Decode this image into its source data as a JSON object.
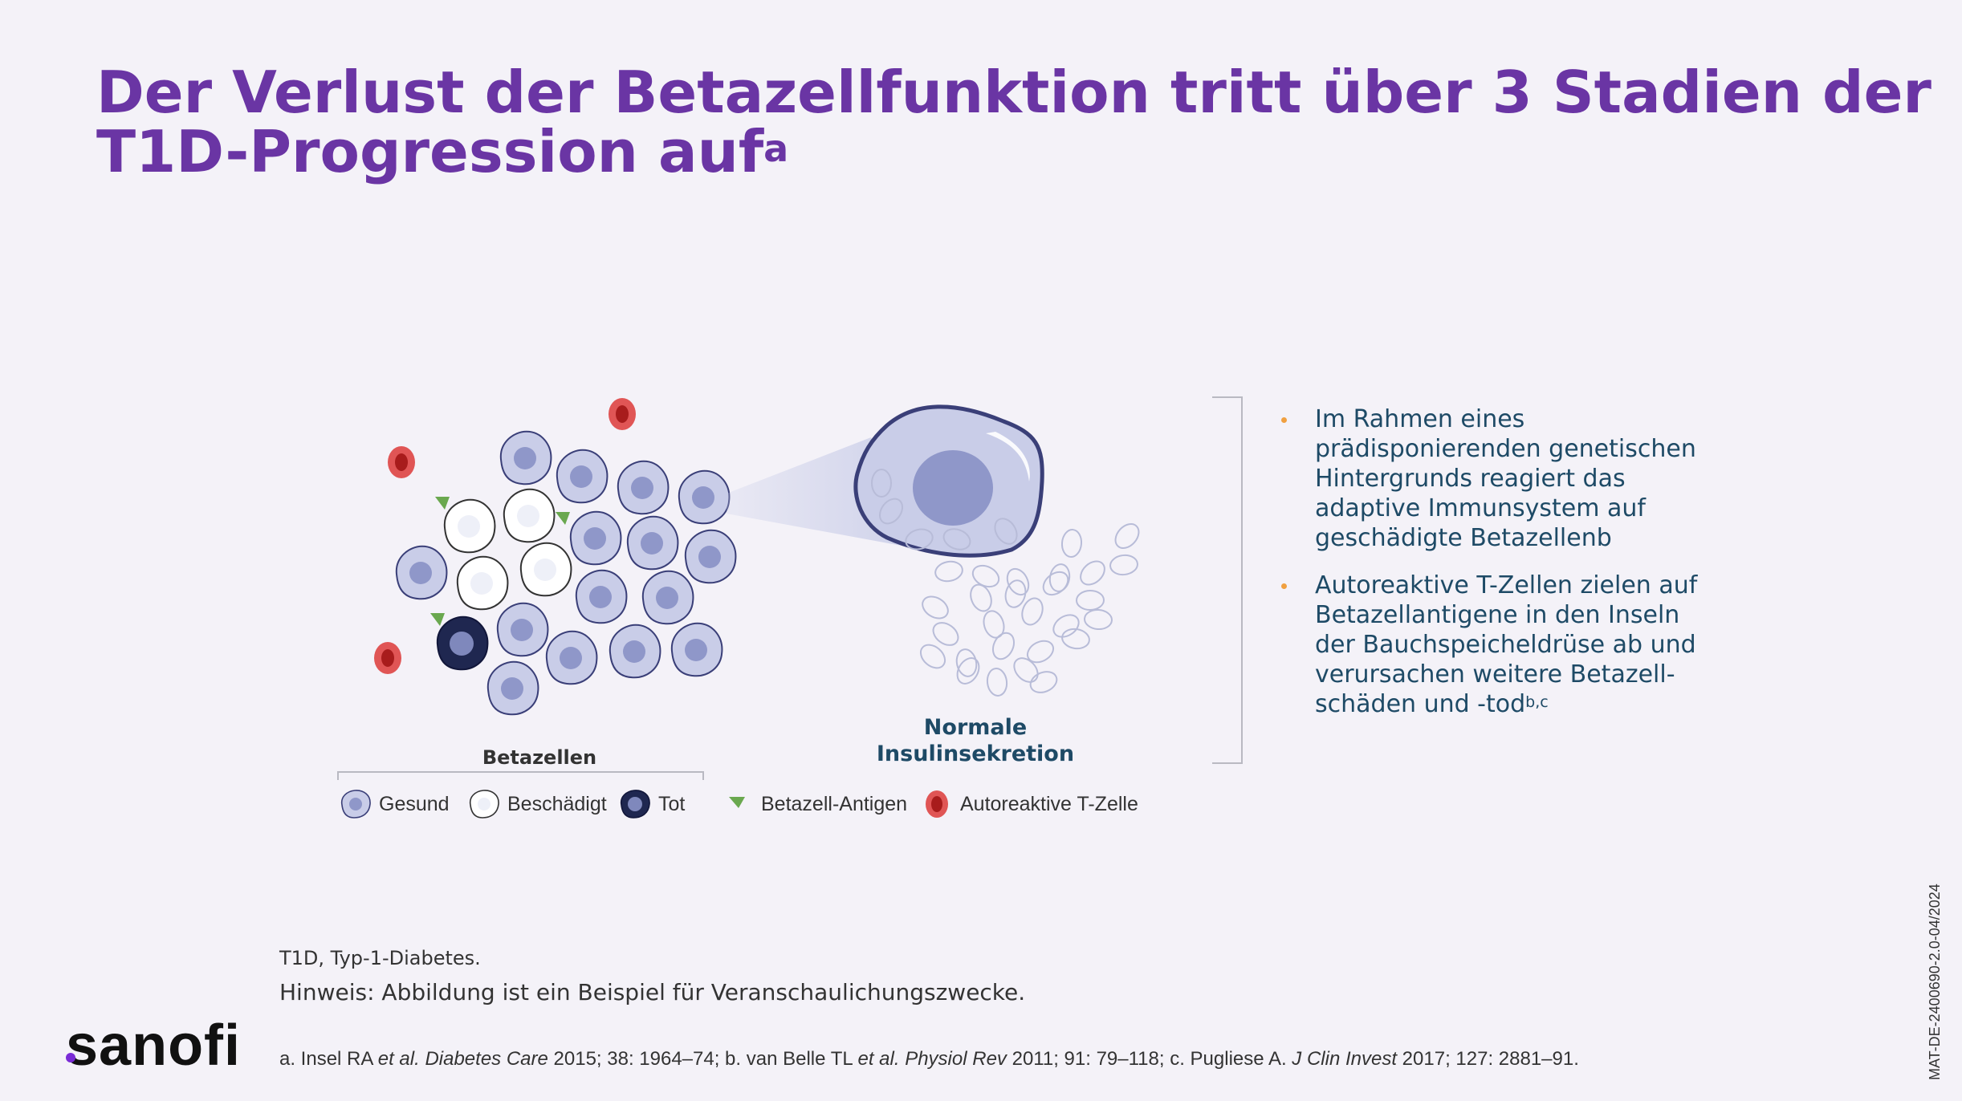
{
  "title": {
    "line1": "Der Verlust der Betazellfunktion tritt über 3 Stadien der",
    "line2": "T1D-Progression auf",
    "superscript": "a"
  },
  "illustration": {
    "cell_groups_label": "Betazellen",
    "normal_secretion_label": [
      "Normale",
      "Insulinsekretion"
    ],
    "colors": {
      "healthy_fill": "#c9cde8",
      "healthy_nucleus": "#8f97c9",
      "cell_outline": "#3a3f78",
      "dead_fill": "#1f2750",
      "antigen": "#6aa84f",
      "tcell_outer": "#e05555",
      "tcell_inner": "#a81c1c"
    }
  },
  "legend": [
    {
      "icon": "healthy-cell-icon",
      "label": "Gesund"
    },
    {
      "icon": "damaged-cell-icon",
      "label": "Beschädigt"
    },
    {
      "icon": "dead-cell-icon",
      "label": "Tot"
    },
    {
      "icon": "antigen-triangle-icon",
      "label": "Betazell-Antigen"
    },
    {
      "icon": "t-cell-icon",
      "label": "Autoreaktive T-Zelle"
    }
  ],
  "bullets": [
    {
      "lines": [
        "Im Rahmen eines",
        "prädisponierenden genetischen",
        "Hintergrunds reagiert das",
        "adaptive Immunsystem auf",
        "geschädigte Betazellenb"
      ],
      "sup": ""
    },
    {
      "lines": [
        "Autoreaktive T-Zellen zielen auf",
        "Betazellantigene in den Inseln",
        "der Bauchspeicheldrüse ab und",
        "verursachen weitere Betazell-",
        "schäden und -tod"
      ],
      "sup": "b,c"
    }
  ],
  "footnotes": {
    "abbreviation": "T1D, Typ-1-Diabetes.",
    "note": "Hinweis: Abbildung ist ein Beispiel für Veranschaulichungszwecke.",
    "refs": {
      "a_prefix": "a. Insel RA ",
      "a_etal": "et al.",
      "a_journal": "Diabetes Care",
      "a_rest": " 2015; 38: 1964–74; b. van Belle TL ",
      "b_etal": "et al.",
      "b_journal": "Physiol Rev",
      "b_rest": " 2011; 91: 79–118; c. Pugliese A. ",
      "c_journal": "J Clin Invest",
      "c_rest": " 2017; 127: 2881–91."
    }
  },
  "logo": "sanofi",
  "document_code": "MAT-DE-2400690-2.0-04/2024"
}
